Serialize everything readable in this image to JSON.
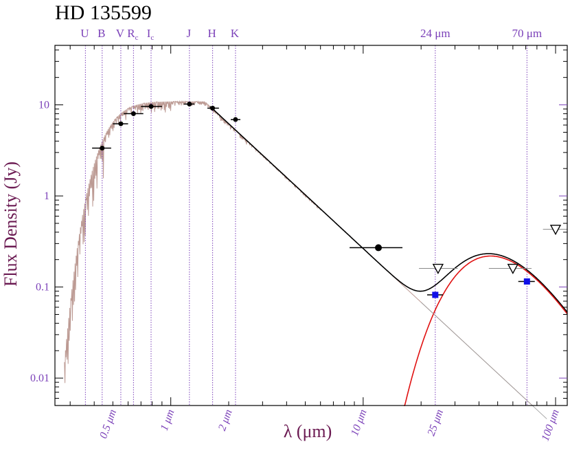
{
  "chart_data": {
    "type": "scatter",
    "title": "HD 135599",
    "xlabel": "λ (μm)",
    "ylabel": "Flux Density (Jy)",
    "xscale": "log",
    "yscale": "log",
    "xlim": [
      0.25,
      115
    ],
    "ylim": [
      0.005,
      45
    ],
    "grid": false,
    "y_ticks": [
      {
        "value": 0.01,
        "label": "0.01"
      },
      {
        "value": 0.1,
        "label": "0.1"
      },
      {
        "value": 1,
        "label": "1"
      },
      {
        "value": 10,
        "label": "10"
      }
    ],
    "x_ticks": [
      {
        "value": 0.5,
        "label": "0.5 μm"
      },
      {
        "value": 1,
        "label": "1 μm"
      },
      {
        "value": 2,
        "label": "2 μm"
      },
      {
        "value": 10,
        "label": "10 μm"
      },
      {
        "value": 25,
        "label": "25 μm"
      },
      {
        "value": 100,
        "label": "100 μm"
      }
    ],
    "bands": [
      {
        "name": "U",
        "sub": "",
        "wl": 0.36
      },
      {
        "name": "B",
        "sub": "",
        "wl": 0.44
      },
      {
        "name": "V",
        "sub": "",
        "wl": 0.55
      },
      {
        "name": "R",
        "sub": "c",
        "wl": 0.64
      },
      {
        "name": "I",
        "sub": "c",
        "wl": 0.79
      },
      {
        "name": "J",
        "sub": "",
        "wl": 1.25
      },
      {
        "name": "H",
        "sub": "",
        "wl": 1.65
      },
      {
        "name": "K",
        "sub": "",
        "wl": 2.17
      },
      {
        "name": "24 μm",
        "sub": "",
        "wl": 23.7
      },
      {
        "name": "70 μm",
        "sub": "",
        "wl": 71
      }
    ],
    "photometry": [
      {
        "x": 0.44,
        "y": 3.35,
        "xerr": [
          0.39,
          0.49
        ]
      },
      {
        "x": 0.55,
        "y": 6.2,
        "xerr": [
          0.5,
          0.6
        ]
      },
      {
        "x": 0.64,
        "y": 8.0,
        "xerr": [
          0.57,
          0.72
        ]
      },
      {
        "x": 0.79,
        "y": 9.6,
        "xerr": [
          0.7,
          0.9
        ]
      },
      {
        "x": 1.25,
        "y": 10.2,
        "xerr": [
          1.17,
          1.33
        ]
      },
      {
        "x": 1.65,
        "y": 9.2,
        "xerr": [
          1.55,
          1.78
        ]
      },
      {
        "x": 2.17,
        "y": 6.9,
        "xerr": [
          2.05,
          2.3
        ]
      },
      {
        "x": 12,
        "y": 0.27,
        "xerr": [
          8.5,
          16
        ]
      }
    ],
    "mips": [
      {
        "x": 23.7,
        "y": 0.082,
        "xerr": [
          21.5,
          26
        ]
      },
      {
        "x": 71,
        "y": 0.115,
        "xerr": [
          64,
          78
        ]
      }
    ],
    "upper_limits": [
      {
        "x": 24.5,
        "y": 0.16,
        "xerr": [
          19.5,
          31
        ]
      },
      {
        "x": 60,
        "y": 0.16,
        "xerr": [
          45,
          75
        ]
      },
      {
        "x": 100,
        "y": 0.43,
        "xerr": [
          86,
          115
        ]
      }
    ],
    "colors": {
      "photosphere": "#b08880",
      "total_model": "#000000",
      "dust_model": "#e01010",
      "mips": "#1010e8",
      "band_lines": "#7a3fb8",
      "frame": "#000000"
    }
  }
}
